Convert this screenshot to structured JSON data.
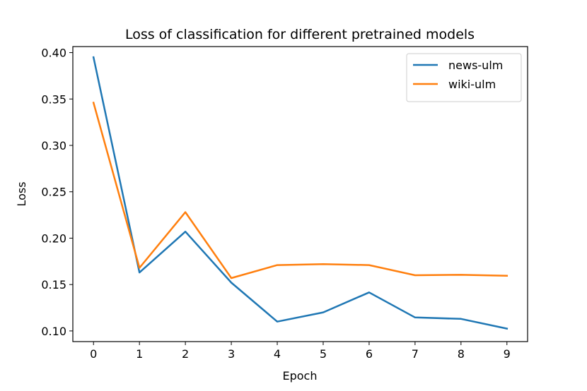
{
  "chart_data": {
    "type": "line",
    "title": "Loss of classification for different pretrained models",
    "xlabel": "Epoch",
    "ylabel": "Loss",
    "x": [
      0,
      1,
      2,
      3,
      4,
      5,
      6,
      7,
      8,
      9
    ],
    "xticks": [
      "0",
      "1",
      "2",
      "3",
      "4",
      "5",
      "6",
      "7",
      "8",
      "9"
    ],
    "yticks": [
      "0.10",
      "0.15",
      "0.20",
      "0.25",
      "0.30",
      "0.35",
      "0.40"
    ],
    "ytick_values": [
      0.1,
      0.15,
      0.2,
      0.25,
      0.3,
      0.35,
      0.4
    ],
    "xlim": [
      -0.45,
      9.45
    ],
    "ylim": [
      0.0885,
      0.4065
    ],
    "grid": false,
    "legend_position": "upper right",
    "series": [
      {
        "name": "news-ulm",
        "color": "#1f77b4",
        "values": [
          0.395,
          0.163,
          0.207,
          0.152,
          0.11,
          0.12,
          0.1415,
          0.1145,
          0.113,
          0.1025
        ]
      },
      {
        "name": "wiki-ulm",
        "color": "#ff7f0e",
        "values": [
          0.346,
          0.168,
          0.228,
          0.157,
          0.171,
          0.172,
          0.171,
          0.16,
          0.1605,
          0.1595
        ]
      }
    ]
  }
}
